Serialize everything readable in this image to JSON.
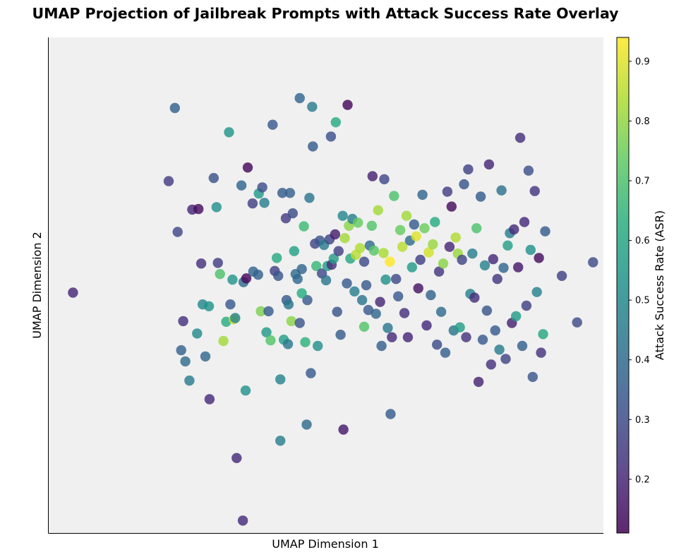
{
  "chart_data": {
    "type": "scatter",
    "title": "UMAP Projection of Jailbreak Prompts with Attack Success Rate Overlay",
    "xlabel": "UMAP Dimension 1",
    "ylabel": "UMAP Dimension 2",
    "colorbar_label": "Attack Success Rate (ASR)",
    "colorbar_ticks": [
      "0.2",
      "0.3",
      "0.4",
      "0.5",
      "0.6",
      "0.7",
      "0.8",
      "0.9"
    ],
    "color_range": [
      0.11,
      0.94
    ],
    "colormap": "viridis",
    "x_ticks_shown": false,
    "y_ticks_shown": false,
    "grid": false,
    "background": "#f0f0f0",
    "xlim": [
      -4.0,
      4.0
    ],
    "ylim": [
      -4.0,
      4.0
    ],
    "points": [
      [
        -3.65,
        -0.12,
        0.2
      ],
      [
        -2.27,
        1.68,
        0.25
      ],
      [
        -2.18,
        2.86,
        0.36
      ],
      [
        -2.14,
        0.86,
        0.29
      ],
      [
        -2.09,
        -1.05,
        0.37
      ],
      [
        -2.06,
        -0.58,
        0.22
      ],
      [
        -2.03,
        -1.23,
        0.4
      ],
      [
        -1.97,
        -1.54,
        0.45
      ],
      [
        -1.93,
        1.22,
        0.2
      ],
      [
        -1.86,
        -0.78,
        0.5
      ],
      [
        -1.84,
        1.23,
        0.14
      ],
      [
        -1.78,
        -0.31,
        0.49
      ],
      [
        -1.74,
        -1.15,
        0.39
      ],
      [
        -1.69,
        -0.34,
        0.53
      ],
      [
        -1.68,
        -1.84,
        0.21
      ],
      [
        -1.62,
        1.73,
        0.32
      ],
      [
        -1.58,
        1.26,
        0.52
      ],
      [
        -1.56,
        0.36,
        0.26
      ],
      [
        -1.53,
        0.18,
        0.7
      ],
      [
        -1.48,
        -0.9,
        0.82
      ],
      [
        -1.44,
        -0.59,
        0.62
      ],
      [
        -1.38,
        -0.31,
        0.34
      ],
      [
        -1.35,
        0.09,
        0.54
      ],
      [
        -1.33,
        -0.55,
        0.87
      ],
      [
        -1.31,
        -0.53,
        0.48
      ],
      [
        -1.29,
        -2.79,
        0.21
      ],
      [
        -1.22,
        1.61,
        0.38
      ],
      [
        -1.19,
        0.05,
        0.4
      ],
      [
        -1.16,
        -1.7,
        0.53
      ],
      [
        -1.15,
        0.11,
        0.13
      ],
      [
        -1.13,
        1.9,
        0.13
      ],
      [
        -1.06,
        1.32,
        0.27
      ],
      [
        -1.05,
        0.22,
        0.38
      ],
      [
        -0.98,
        0.17,
        0.37
      ],
      [
        -0.97,
        1.48,
        0.55
      ],
      [
        -0.94,
        -0.42,
        0.77
      ],
      [
        -0.92,
        1.58,
        0.31
      ],
      [
        -0.89,
        1.33,
        0.46
      ],
      [
        -0.86,
        -0.76,
        0.55
      ],
      [
        -0.83,
        -0.42,
        0.35
      ],
      [
        -0.8,
        -0.89,
        0.71
      ],
      [
        -0.77,
        2.59,
        0.34
      ],
      [
        -0.74,
        0.23,
        0.27
      ],
      [
        -0.71,
        0.44,
        0.61
      ],
      [
        -0.69,
        0.15,
        0.33
      ],
      [
        -0.66,
        -1.52,
        0.48
      ],
      [
        -0.63,
        1.49,
        0.35
      ],
      [
        -0.61,
        -0.88,
        0.58
      ],
      [
        -0.58,
        1.08,
        0.26
      ],
      [
        -0.57,
        -0.24,
        0.34
      ],
      [
        -0.54,
        -0.31,
        0.43
      ],
      [
        -0.52,
        1.49,
        0.37
      ],
      [
        -0.5,
        -0.58,
        0.79
      ],
      [
        -0.48,
        1.16,
        0.3
      ],
      [
        -0.46,
        0.55,
        0.58
      ],
      [
        -0.44,
        0.18,
        0.4
      ],
      [
        -0.41,
        0.1,
        0.39
      ],
      [
        -0.38,
        -0.61,
        0.33
      ],
      [
        -0.35,
        0.26,
        0.38
      ],
      [
        -0.32,
        0.95,
        0.67
      ],
      [
        -0.3,
        -0.92,
        0.64
      ],
      [
        -0.27,
        -0.24,
        0.34
      ],
      [
        -0.24,
        1.41,
        0.43
      ],
      [
        -0.22,
        -1.42,
        0.35
      ],
      [
        -0.19,
        2.24,
        0.35
      ],
      [
        -0.16,
        0.67,
        0.28
      ],
      [
        -0.14,
        0.31,
        0.66
      ],
      [
        -0.12,
        -0.98,
        0.52
      ],
      [
        -0.09,
        0.72,
        0.33
      ],
      [
        -0.06,
        0.19,
        0.29
      ],
      [
        -0.03,
        0.65,
        0.45
      ],
      [
        0.0,
        0.08,
        0.43
      ],
      [
        0.02,
        0.31,
        0.56
      ],
      [
        0.05,
        0.74,
        0.28
      ],
      [
        0.08,
        0.33,
        0.22
      ],
      [
        0.11,
        0.43,
        0.57
      ],
      [
        0.13,
        0.82,
        0.18
      ],
      [
        0.16,
        -0.43,
        0.32
      ],
      [
        0.18,
        0.55,
        0.27
      ],
      [
        0.21,
        -0.8,
        0.35
      ],
      [
        0.24,
        1.12,
        0.49
      ],
      [
        0.27,
        0.76,
        0.82
      ],
      [
        0.3,
        0.03,
        0.35
      ],
      [
        0.33,
        0.96,
        0.79
      ],
      [
        0.35,
        0.43,
        0.6
      ],
      [
        0.38,
        1.07,
        0.46
      ],
      [
        0.41,
        -0.1,
        0.46
      ],
      [
        0.43,
        0.49,
        0.85
      ],
      [
        0.46,
        1.01,
        0.74
      ],
      [
        0.49,
        0.6,
        0.84
      ],
      [
        0.52,
        -0.24,
        0.43
      ],
      [
        0.55,
        0.38,
        0.3
      ],
      [
        0.58,
        0.0,
        0.34
      ],
      [
        0.61,
        -0.4,
        0.34
      ],
      [
        0.63,
        0.64,
        0.4
      ],
      [
        0.66,
        0.96,
        0.71
      ],
      [
        0.69,
        0.56,
        0.72
      ],
      [
        0.72,
        -0.46,
        0.39
      ],
      [
        0.75,
        1.21,
        0.82
      ],
      [
        0.78,
        -0.27,
        0.2
      ],
      [
        0.8,
        -0.98,
        0.36
      ],
      [
        0.83,
        0.52,
        0.83
      ],
      [
        0.86,
        0.09,
        0.52
      ],
      [
        0.89,
        -0.69,
        0.44
      ],
      [
        0.92,
        0.38,
        0.94
      ],
      [
        0.95,
        -0.84,
        0.21
      ],
      [
        0.98,
        1.44,
        0.7
      ],
      [
        1.01,
        0.1,
        0.29
      ],
      [
        1.04,
        -0.18,
        0.34
      ],
      [
        1.07,
        0.89,
        0.74
      ],
      [
        1.1,
        0.62,
        0.85
      ],
      [
        1.13,
        -0.45,
        0.22
      ],
      [
        1.16,
        1.12,
        0.82
      ],
      [
        1.18,
        -0.84,
        0.2
      ],
      [
        1.21,
        0.72,
        0.4
      ],
      [
        1.24,
        0.29,
        0.56
      ],
      [
        1.27,
        0.98,
        0.35
      ],
      [
        1.3,
        0.79,
        0.9
      ],
      [
        1.33,
        -0.05,
        0.15
      ],
      [
        1.36,
        0.41,
        0.26
      ],
      [
        1.39,
        1.46,
        0.38
      ],
      [
        1.42,
        0.92,
        0.75
      ],
      [
        1.45,
        -0.65,
        0.21
      ],
      [
        1.48,
        0.53,
        0.88
      ],
      [
        1.51,
        -0.16,
        0.37
      ],
      [
        1.54,
        0.66,
        0.81
      ],
      [
        1.57,
        1.02,
        0.62
      ],
      [
        1.6,
        -0.96,
        0.3
      ],
      [
        1.63,
        0.22,
        0.24
      ],
      [
        1.66,
        -0.43,
        0.4
      ],
      [
        1.69,
        0.35,
        0.79
      ],
      [
        1.72,
        -1.09,
        0.36
      ],
      [
        1.75,
        1.51,
        0.26
      ],
      [
        1.78,
        0.62,
        0.2
      ],
      [
        1.81,
        1.27,
        0.14
      ],
      [
        1.84,
        -0.73,
        0.43
      ],
      [
        1.87,
        0.77,
        0.84
      ],
      [
        1.9,
        0.51,
        0.81
      ],
      [
        1.93,
        -0.68,
        0.57
      ],
      [
        1.96,
        0.41,
        0.28
      ],
      [
        1.99,
        1.63,
        0.33
      ],
      [
        2.02,
        -0.84,
        0.23
      ],
      [
        2.05,
        1.87,
        0.27
      ],
      [
        2.08,
        -0.14,
        0.47
      ],
      [
        2.11,
        0.51,
        0.46
      ],
      [
        2.14,
        -0.2,
        0.22
      ],
      [
        2.17,
        0.92,
        0.7
      ],
      [
        2.2,
        -1.56,
        0.19
      ],
      [
        2.23,
        1.43,
        0.35
      ],
      [
        2.26,
        -0.88,
        0.34
      ],
      [
        2.29,
        0.32,
        0.47
      ],
      [
        2.32,
        -0.41,
        0.33
      ],
      [
        2.35,
        1.95,
        0.2
      ],
      [
        2.38,
        -1.28,
        0.23
      ],
      [
        2.41,
        0.42,
        0.21
      ],
      [
        2.44,
        -0.73,
        0.35
      ],
      [
        2.47,
        0.1,
        0.24
      ],
      [
        2.5,
        -1.04,
        0.45
      ],
      [
        2.53,
        1.53,
        0.42
      ],
      [
        2.56,
        0.28,
        0.38
      ],
      [
        2.59,
        -1.19,
        0.28
      ],
      [
        2.62,
        0.64,
        0.58
      ],
      [
        2.65,
        0.84,
        0.46
      ],
      [
        2.68,
        -0.61,
        0.19
      ],
      [
        2.71,
        0.9,
        0.21
      ],
      [
        2.74,
        -0.5,
        0.56
      ],
      [
        2.77,
        0.29,
        0.17
      ],
      [
        2.8,
        2.38,
        0.22
      ],
      [
        2.83,
        -0.98,
        0.36
      ],
      [
        2.86,
        1.02,
        0.21
      ],
      [
        2.89,
        -0.33,
        0.27
      ],
      [
        2.92,
        1.85,
        0.31
      ],
      [
        2.95,
        0.57,
        0.52
      ],
      [
        2.98,
        -1.48,
        0.33
      ],
      [
        3.01,
        1.52,
        0.24
      ],
      [
        3.04,
        -0.11,
        0.47
      ],
      [
        3.07,
        0.44,
        0.14
      ],
      [
        3.1,
        -1.09,
        0.23
      ],
      [
        3.13,
        -0.79,
        0.6
      ],
      [
        3.16,
        0.87,
        0.35
      ],
      [
        3.4,
        0.15,
        0.27
      ],
      [
        3.62,
        -0.6,
        0.3
      ],
      [
        3.85,
        0.37,
        0.3
      ],
      [
        -0.38,
        3.02,
        0.38
      ],
      [
        -0.2,
        2.88,
        0.45
      ],
      [
        0.07,
        2.4,
        0.31
      ],
      [
        0.14,
        2.63,
        0.61
      ],
      [
        0.31,
        2.91,
        0.13
      ],
      [
        -1.4,
        2.47,
        0.54
      ],
      [
        0.55,
        -0.67,
        0.71
      ],
      [
        -0.28,
        -2.25,
        0.4
      ],
      [
        -0.66,
        -2.51,
        0.46
      ],
      [
        0.93,
        -2.08,
        0.35
      ],
      [
        0.25,
        -2.33,
        0.17
      ],
      [
        -0.55,
        -0.95,
        0.44
      ],
      [
        -1.2,
        -3.8,
        0.21
      ],
      [
        0.67,
        1.76,
        0.19
      ],
      [
        0.84,
        1.71,
        0.29
      ],
      [
        -1.8,
        0.35,
        0.22
      ],
      [
        -0.35,
        -0.13,
        0.62
      ]
    ]
  }
}
